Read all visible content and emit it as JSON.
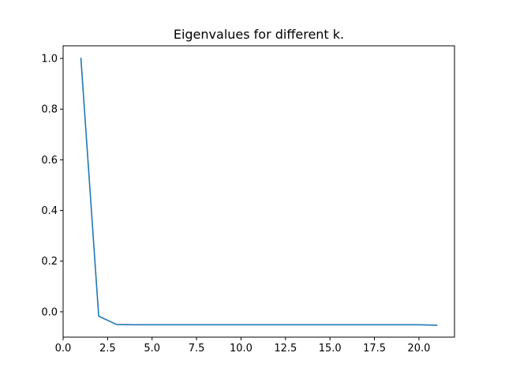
{
  "chart_data": {
    "type": "line",
    "title": "Eigenvalues for different k.",
    "xlabel": "",
    "ylabel": "",
    "xlim": [
      0.0,
      22.0
    ],
    "ylim": [
      -0.1,
      1.05
    ],
    "xticks": [
      0.0,
      2.5,
      5.0,
      7.5,
      10.0,
      12.5,
      15.0,
      17.5,
      20.0
    ],
    "xtick_labels": [
      "0.0",
      "2.5",
      "5.0",
      "7.5",
      "10.0",
      "12.5",
      "15.0",
      "17.5",
      "20.0"
    ],
    "yticks": [
      0.0,
      0.2,
      0.4,
      0.6,
      0.8,
      1.0
    ],
    "ytick_labels": [
      "0.0",
      "0.2",
      "0.4",
      "0.6",
      "0.8",
      "1.0"
    ],
    "grid": false,
    "series": [
      {
        "color": "#1f77b4",
        "x": [
          1,
          2,
          3,
          4,
          5,
          6,
          7,
          8,
          9,
          10,
          11,
          12,
          13,
          14,
          15,
          16,
          17,
          18,
          19,
          20,
          21
        ],
        "y": [
          1.0,
          -0.017,
          -0.05,
          -0.051,
          -0.051,
          -0.051,
          -0.051,
          -0.051,
          -0.051,
          -0.051,
          -0.051,
          -0.051,
          -0.051,
          -0.051,
          -0.051,
          -0.051,
          -0.051,
          -0.051,
          -0.051,
          -0.051,
          -0.053
        ]
      }
    ]
  }
}
